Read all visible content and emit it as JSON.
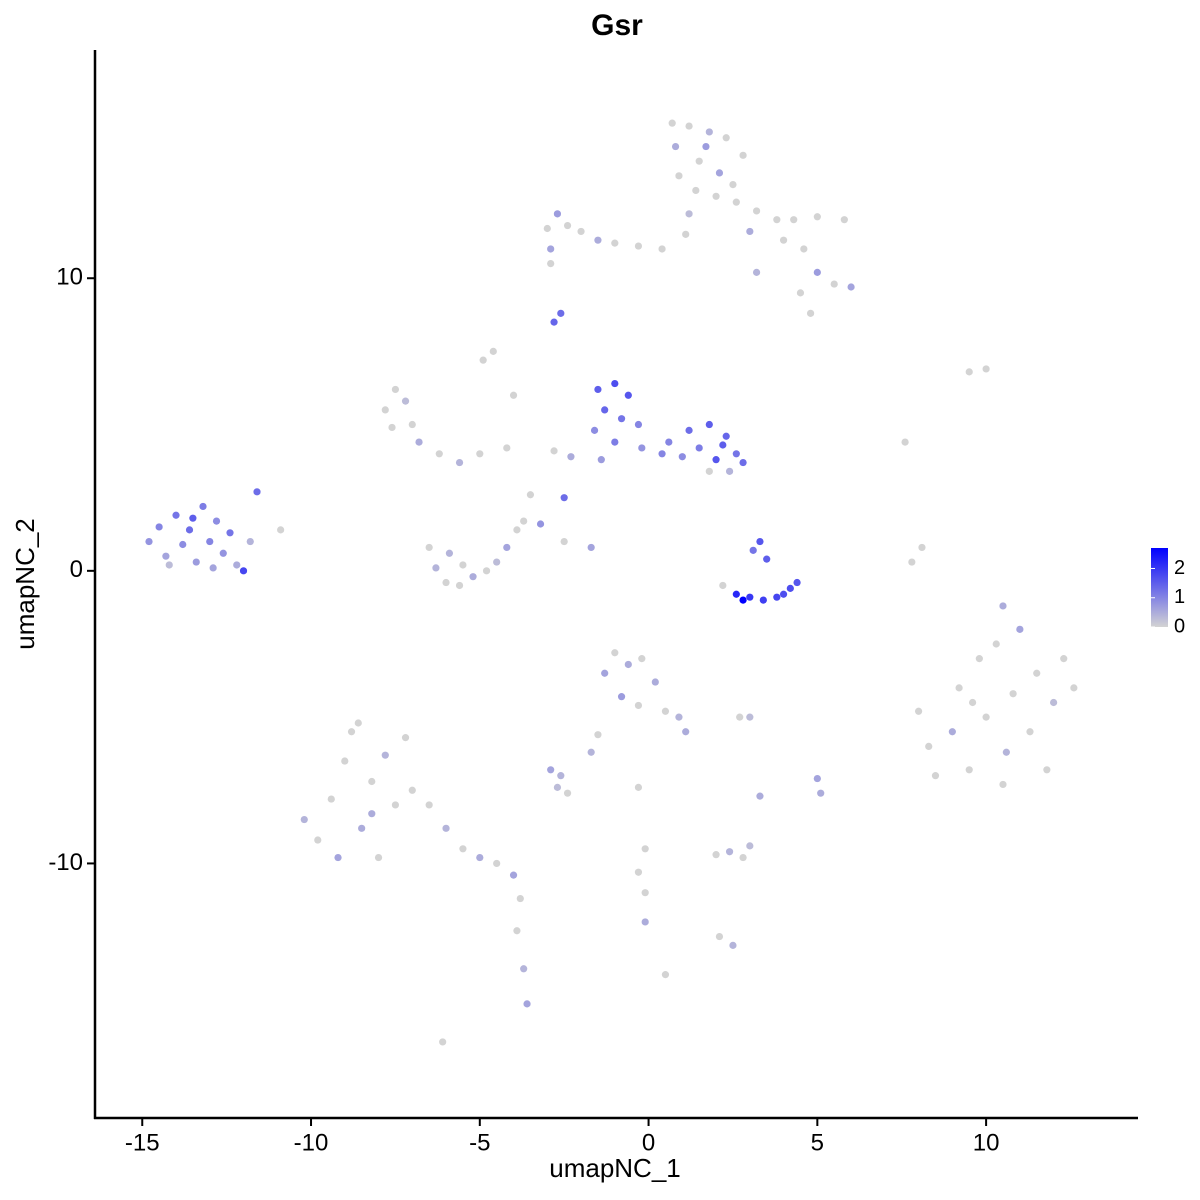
{
  "chart_data": {
    "type": "scatter",
    "title": "Gsr",
    "x_label": "umapNC_1",
    "y_label": "umapNC_2",
    "xlim": [
      -16.4,
      14.5
    ],
    "ylim": [
      -18.7,
      17.8
    ],
    "xticks": [
      -15,
      -10,
      -5,
      0,
      5,
      10
    ],
    "yticks": [
      -10,
      0,
      10
    ],
    "color_low": "lightgrey",
    "color_high": "blue",
    "clim": [
      0,
      2.7
    ],
    "colorbar_ticks": [
      0,
      1,
      2
    ],
    "legend": "right",
    "x": [
      -14.8,
      -14.5,
      -14.3,
      -14.0,
      -13.8,
      -13.6,
      -13.4,
      -13.2,
      -13.0,
      -12.8,
      -12.6,
      -12.4,
      -12.2,
      -12.0,
      -11.6,
      -11.8,
      -14.2,
      -13.5,
      -12.9,
      -10.9,
      0.7,
      1.2,
      1.8,
      2.3,
      2.8,
      0.8,
      1.5,
      2.1,
      0.9,
      1.4,
      2.0,
      1.2,
      2.5,
      1.7,
      1.1,
      2.6,
      3.2,
      3.8,
      4.3,
      5.0,
      5.8,
      3.0,
      4.0,
      4.6,
      5.0,
      5.5,
      6.0,
      4.5,
      4.8,
      3.2,
      -3.0,
      -2.7,
      -2.4,
      -2.0,
      -1.5,
      -1.0,
      -0.3,
      0.4,
      -2.9,
      -2.9,
      -2.8,
      -2.6,
      -4.6,
      -4.9,
      -4.0,
      -7.8,
      -7.5,
      -7.2,
      -7.0,
      -7.6,
      -6.8,
      -6.2,
      -5.6,
      -5.0,
      -4.2,
      -1.5,
      -1.0,
      -0.6,
      -1.3,
      -0.8,
      -0.3,
      -1.6,
      -1.0,
      -0.2,
      0.4,
      -1.4,
      -2.3,
      -2.8,
      -2.5,
      1.2,
      1.8,
      2.3,
      2.6,
      2.0,
      1.5,
      1.0,
      2.4,
      1.8,
      0.6,
      2.8,
      2.2,
      -6.5,
      -6.3,
      -6.0,
      -5.6,
      -5.2,
      -4.8,
      -4.5,
      -4.2,
      -3.9,
      -3.7,
      -5.5,
      -5.9,
      -3.2,
      -2.5,
      -1.7,
      -3.5,
      2.2,
      2.6,
      3.0,
      3.4,
      3.8,
      4.2,
      4.4,
      3.5,
      3.3,
      3.1,
      2.8,
      4.0,
      8.0,
      8.3,
      8.5,
      9.0,
      9.2,
      9.5,
      9.8,
      10.0,
      10.3,
      10.6,
      10.8,
      11.0,
      11.3,
      11.5,
      11.8,
      12.0,
      12.3,
      12.6,
      9.6,
      10.5,
      7.8,
      8.1,
      7.6,
      9.5,
      10.0,
      10.5,
      -10.2,
      -9.8,
      -9.4,
      -9.0,
      -8.8,
      -8.5,
      -8.2,
      -8.0,
      -7.8,
      -7.5,
      -7.2,
      -9.2,
      -8.6,
      -7.0,
      -8.2,
      -6.5,
      -6.0,
      -5.5,
      -5.0,
      -4.5,
      -4.0,
      -3.8,
      -3.9,
      -3.7,
      -3.6,
      -6.1,
      -1.3,
      -1.0,
      -0.6,
      -0.2,
      0.2,
      -0.8,
      -0.3,
      0.5,
      0.9,
      1.1,
      -1.5,
      -1.7,
      -2.9,
      -2.6,
      -2.4,
      -2.7,
      -0.1,
      -0.3,
      -0.1,
      -0.1,
      0.5,
      2.0,
      2.4,
      2.8,
      3.0,
      2.1,
      2.5,
      2.7,
      3.0,
      5.0,
      5.1,
      3.3,
      -0.3
    ],
    "y": [
      1.0,
      1.5,
      0.5,
      1.9,
      0.9,
      1.4,
      0.3,
      2.2,
      1.0,
      1.7,
      0.6,
      1.3,
      0.2,
      0.0,
      2.7,
      1.0,
      0.2,
      1.8,
      0.1,
      1.4,
      15.3,
      15.2,
      15.0,
      14.8,
      14.2,
      14.5,
      14.0,
      13.6,
      13.5,
      13.0,
      12.8,
      12.2,
      13.2,
      14.5,
      11.5,
      12.6,
      12.3,
      12.0,
      12.0,
      12.1,
      12.0,
      11.6,
      11.3,
      11.0,
      10.2,
      9.8,
      9.7,
      9.5,
      8.8,
      10.2,
      11.7,
      12.2,
      11.8,
      11.6,
      11.3,
      11.2,
      11.1,
      11.0,
      11.0,
      10.5,
      8.5,
      8.8,
      7.5,
      7.2,
      6.0,
      5.5,
      6.2,
      5.8,
      5.0,
      4.9,
      4.4,
      4.0,
      3.7,
      4.0,
      4.2,
      6.2,
      6.4,
      6.0,
      5.5,
      5.2,
      5.0,
      4.8,
      4.4,
      4.2,
      4.0,
      3.8,
      3.9,
      4.1,
      2.5,
      4.8,
      5.0,
      4.6,
      4.0,
      3.8,
      4.2,
      3.9,
      3.4,
      3.4,
      4.4,
      3.7,
      4.3,
      0.8,
      0.1,
      -0.4,
      -0.5,
      -0.2,
      0.0,
      0.3,
      0.8,
      1.4,
      1.7,
      0.2,
      0.6,
      1.6,
      1.0,
      0.8,
      2.6,
      -0.5,
      -0.8,
      -0.9,
      -1.0,
      -0.9,
      -0.6,
      -0.4,
      0.4,
      1.0,
      0.7,
      -1.0,
      -0.8,
      -4.8,
      -6.0,
      -7.0,
      -5.5,
      -4.0,
      -6.8,
      -3.0,
      -5.0,
      -2.5,
      -6.2,
      -4.2,
      -2.0,
      -5.5,
      -3.5,
      -6.8,
      -4.5,
      -3.0,
      -4.0,
      -4.5,
      -7.3,
      0.3,
      0.8,
      4.4,
      6.8,
      6.9,
      -1.2,
      -8.5,
      -9.2,
      -7.8,
      -6.5,
      -5.5,
      -8.8,
      -7.2,
      -9.8,
      -6.3,
      -8.0,
      -5.7,
      -9.8,
      -5.2,
      -7.5,
      -8.3,
      -8.0,
      -8.8,
      -9.5,
      -9.8,
      -10.0,
      -10.4,
      -11.2,
      -12.3,
      -13.6,
      -14.8,
      -16.1,
      -3.5,
      -2.8,
      -3.2,
      -3.0,
      -3.8,
      -4.3,
      -4.6,
      -4.8,
      -5.0,
      -5.5,
      -5.6,
      -6.2,
      -6.8,
      -7.0,
      -7.6,
      -7.4,
      -9.5,
      -10.3,
      -11.0,
      -12.0,
      -13.8,
      -9.7,
      -9.6,
      -9.8,
      -9.4,
      -12.5,
      -12.8,
      -5.0,
      -5.0,
      -7.1,
      -7.6,
      -7.7,
      -7.4
    ],
    "values": [
      0.8,
      1.0,
      0.6,
      1.2,
      0.9,
      1.3,
      0.7,
      1.1,
      1.0,
      0.9,
      0.8,
      1.2,
      0.5,
      1.8,
      1.3,
      0.4,
      0.3,
      1.5,
      0.6,
      0,
      0,
      0,
      0.4,
      0,
      0,
      0.5,
      0,
      0.6,
      0,
      0,
      0,
      0.3,
      0,
      0.7,
      0,
      0,
      0,
      0,
      0,
      0,
      0,
      0.5,
      0,
      0,
      0.7,
      0,
      0.6,
      0,
      0,
      0.4,
      0,
      0.7,
      0,
      0,
      0.5,
      0,
      0,
      0,
      0.6,
      0,
      1.4,
      1.3,
      0,
      0,
      0,
      0,
      0,
      0.3,
      0,
      0,
      0.5,
      0,
      0.4,
      0,
      0,
      1.5,
      1.7,
      1.6,
      1.4,
      1.2,
      1.0,
      0.9,
      1.1,
      0.8,
      1.0,
      0.7,
      0.5,
      0,
      1.3,
      1.3,
      1.5,
      1.4,
      1.2,
      1.6,
      1.1,
      0.9,
      0.4,
      0,
      1.0,
      1.3,
      1.5,
      0,
      0.4,
      0,
      0,
      0.5,
      0,
      0.3,
      0.6,
      0,
      0,
      0,
      0.4,
      0.8,
      0,
      0.6,
      0,
      0,
      2.2,
      2.0,
      1.9,
      1.8,
      1.7,
      1.6,
      1.5,
      1.6,
      1.2,
      2.7,
      1.7,
      0,
      0,
      0,
      0.5,
      0,
      0,
      0,
      0,
      0,
      0.4,
      0,
      0.6,
      0,
      0,
      0,
      0.3,
      0,
      0,
      0,
      0,
      0,
      0,
      0,
      0,
      0,
      0.5,
      0.4,
      0,
      0,
      0,
      0,
      0.5,
      0,
      0,
      0.4,
      0,
      0,
      0.6,
      0,
      0,
      0.5,
      0,
      0.4,
      0,
      0.5,
      0,
      0.6,
      0,
      0,
      0.4,
      0.6,
      0,
      0.6,
      0,
      0.5,
      0,
      0.5,
      0.7,
      0,
      0,
      0.4,
      0.5,
      0,
      0.4,
      0.6,
      0.4,
      0,
      0.3,
      0,
      0,
      0,
      0.5,
      0,
      0,
      0.4,
      0,
      0.3,
      0,
      0.4,
      0,
      0.3,
      0.6,
      0.5,
      0.5,
      0
    ]
  }
}
